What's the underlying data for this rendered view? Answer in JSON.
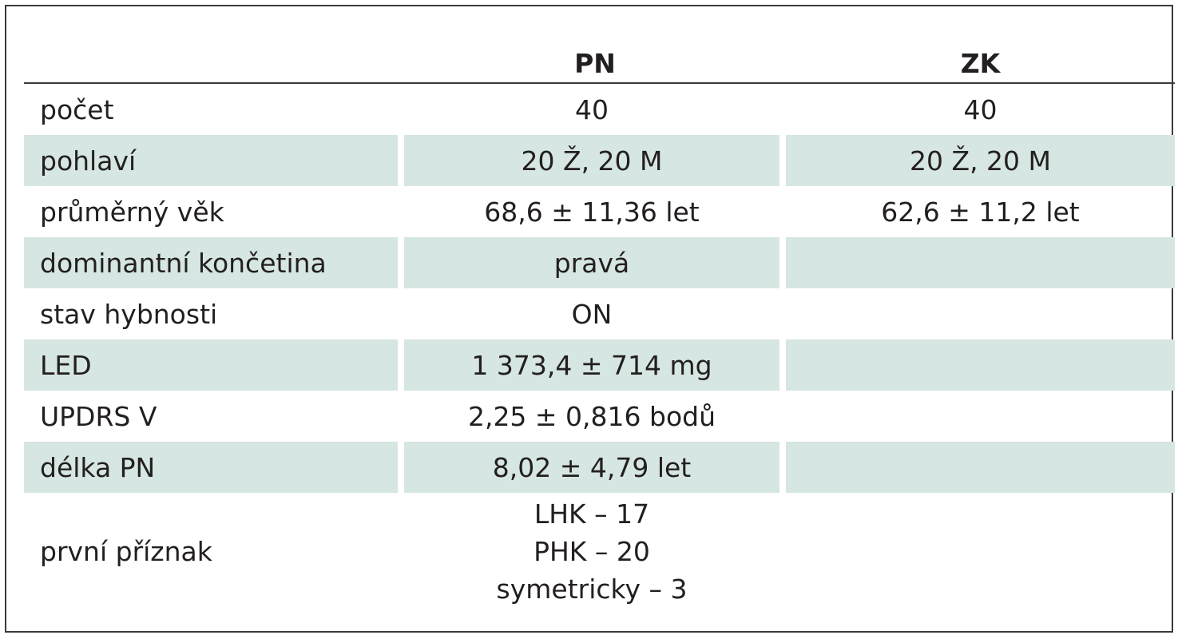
{
  "table": {
    "headers": [
      "",
      "PN",
      "ZK"
    ],
    "rows": [
      {
        "label": "počet",
        "pn": "40",
        "zk": "40"
      },
      {
        "label": "pohlaví",
        "pn": "20 Ž, 20 M",
        "zk": "20 Ž, 20 M"
      },
      {
        "label": "průměrný věk",
        "pn": "68,6 ± 11,36 let",
        "zk": "62,6 ± 11,2 let"
      },
      {
        "label": "dominantní končetina",
        "pn": "pravá",
        "zk": ""
      },
      {
        "label": "stav hybnosti",
        "pn": "ON",
        "zk": ""
      },
      {
        "label": "LED",
        "pn": "1 373,4 ± 714 mg",
        "zk": ""
      },
      {
        "label": "UPDRS V",
        "pn": "2,25 ± 0,816 bodů",
        "zk": ""
      },
      {
        "label": "délka PN",
        "pn": "8,02 ± 4,79 let",
        "zk": ""
      },
      {
        "label": "první příznak",
        "pn": [
          "LHK – 17",
          "PHK – 20",
          "symetricky – 3"
        ],
        "zk": ""
      }
    ]
  },
  "colors": {
    "shaded_row": "#d6e6e2",
    "border": "#3a3a3a",
    "text": "#231f20"
  }
}
